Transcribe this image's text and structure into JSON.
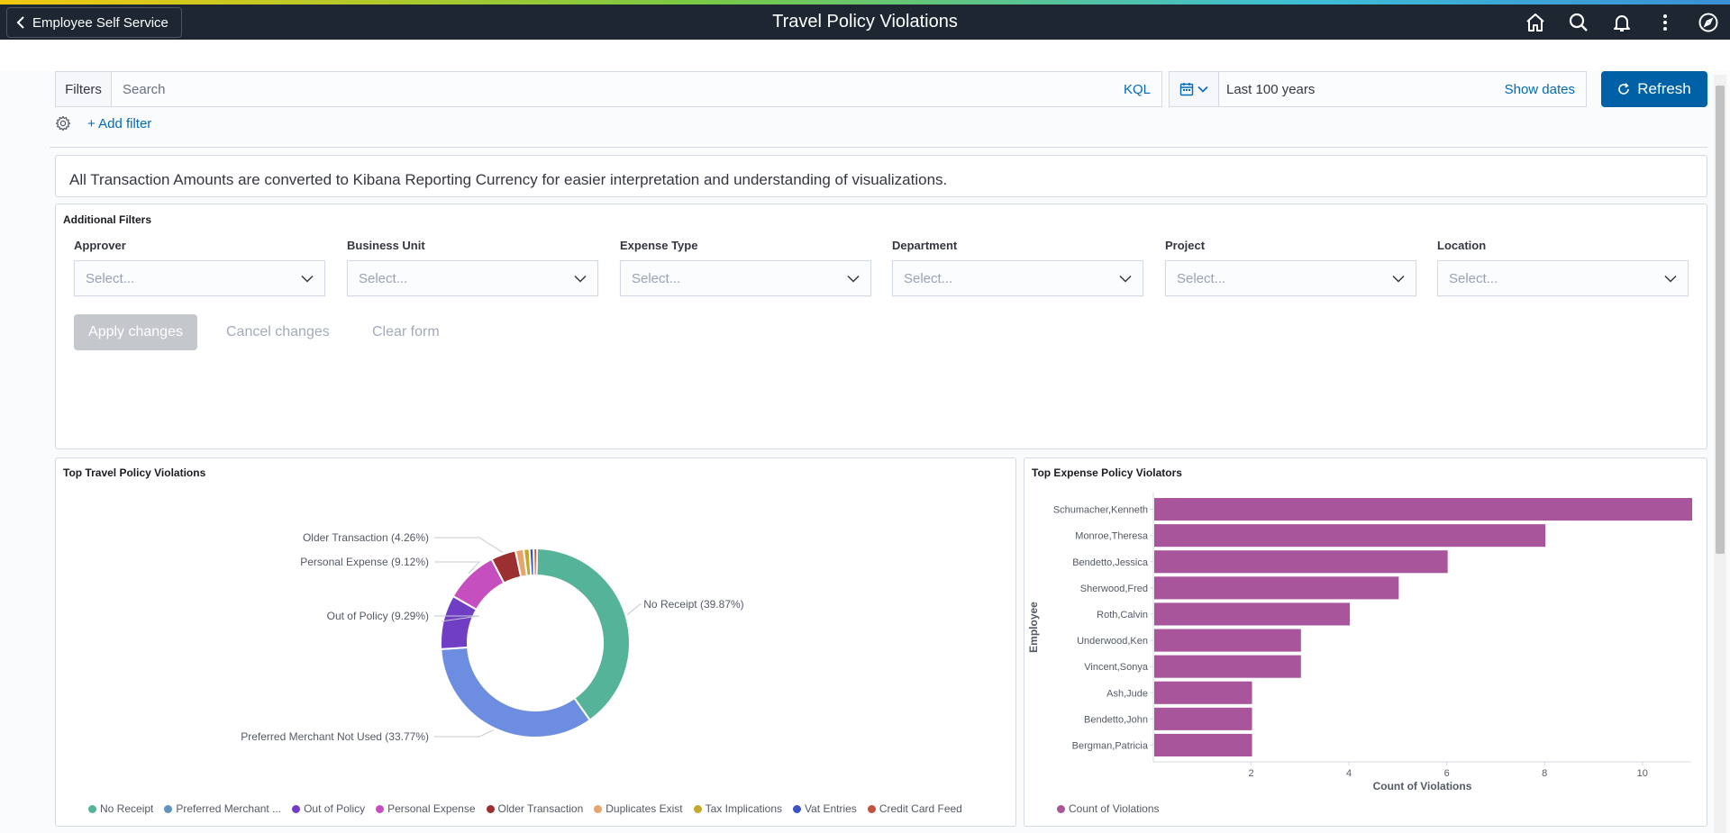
{
  "header": {
    "back_label": "Employee Self Service",
    "title": "Travel Policy Violations",
    "icons": [
      "home-icon",
      "search-icon",
      "bell-icon",
      "more-vertical-icon",
      "compass-icon"
    ]
  },
  "querybar": {
    "filters_label": "Filters",
    "search_placeholder": "Search",
    "kql_label": "KQL",
    "date_range": "Last 100 years",
    "show_dates_label": "Show dates",
    "refresh_label": "Refresh",
    "add_filter_label": "+ Add filter"
  },
  "info": {
    "text": "All Transaction Amounts are converted to Kibana Reporting Currency for easier interpretation and understanding of visualizations."
  },
  "additional_filters": {
    "title": "Additional Filters",
    "controls": [
      {
        "label": "Approver",
        "placeholder": "Select..."
      },
      {
        "label": "Business Unit",
        "placeholder": "Select..."
      },
      {
        "label": "Expense Type",
        "placeholder": "Select..."
      },
      {
        "label": "Department",
        "placeholder": "Select..."
      },
      {
        "label": "Project",
        "placeholder": "Select..."
      },
      {
        "label": "Location",
        "placeholder": "Select..."
      }
    ],
    "apply_label": "Apply changes",
    "cancel_label": "Cancel changes",
    "clear_label": "Clear form"
  },
  "donut_panel": {
    "title": "Top Travel Policy Violations",
    "legend": [
      {
        "label": "No Receipt",
        "color": "#54b399"
      },
      {
        "label": "Preferred Merchant ...",
        "color": "#6092c0"
      },
      {
        "label": "Out of Policy",
        "color": "#6f3ec5"
      },
      {
        "label": "Personal Expense",
        "color": "#c64fbf"
      },
      {
        "label": "Older Transaction",
        "color": "#9c2f2f"
      },
      {
        "label": "Duplicates Exist",
        "color": "#e7a46c"
      },
      {
        "label": "Tax Implications",
        "color": "#c4a82b"
      },
      {
        "label": "Vat Entries",
        "color": "#3b51c4"
      },
      {
        "label": "Credit Card Feed",
        "color": "#c2523f"
      }
    ]
  },
  "bar_panel": {
    "title": "Top Expense Policy Violators",
    "legend_label": "Count of Violations",
    "legend_color": "#a8559b"
  },
  "chart_data": [
    {
      "type": "pie",
      "title": "Top Travel Policy Violations",
      "donut": true,
      "slices": [
        {
          "label": "No Receipt",
          "percent": 39.87,
          "display": "No Receipt (39.87%)",
          "color": "#54b399"
        },
        {
          "label": "Preferred Merchant Not Used",
          "percent": 33.77,
          "display": "Preferred Merchant Not Used (33.77%)",
          "color": "#6d8ee0"
        },
        {
          "label": "Out of Policy",
          "percent": 9.29,
          "display": "Out of Policy (9.29%)",
          "color": "#6f3ec5"
        },
        {
          "label": "Personal Expense",
          "percent": 9.12,
          "display": "Personal Expense (9.12%)",
          "color": "#c64fbf"
        },
        {
          "label": "Older Transaction",
          "percent": 4.26,
          "display": "Older Transaction (4.26%)",
          "color": "#9c2f2f"
        },
        {
          "label": "Duplicates Exist",
          "percent": 1.4,
          "color": "#e7a46c"
        },
        {
          "label": "Tax Implications",
          "percent": 1.0,
          "color": "#c4a82b"
        },
        {
          "label": "Vat Entries",
          "percent": 0.7,
          "color": "#3b51c4"
        },
        {
          "label": "Credit Card Feed",
          "percent": 0.59,
          "color": "#c2523f"
        }
      ],
      "legend_position": "bottom"
    },
    {
      "type": "bar",
      "orientation": "horizontal",
      "title": "Top Expense Policy Violators",
      "categories": [
        "Schumacher,Kenneth",
        "Monroe,Theresa",
        "Bendetto,Jessica",
        "Sherwood,Fred",
        "Roth,Calvin",
        "Underwood,Ken",
        "Vincent,Sonya",
        "Ash,Jude",
        "Bendetto,John",
        "Bergman,Patricia"
      ],
      "series": [
        {
          "name": "Count of Violations",
          "values": [
            11,
            8,
            6,
            5,
            4,
            3,
            3,
            2,
            2,
            2
          ],
          "color": "#a8559b"
        }
      ],
      "xlabel": "Count of Violations",
      "ylabel": "Employee",
      "xticks": [
        "2",
        "4",
        "6",
        "8",
        "10"
      ],
      "xlim": [
        0,
        11
      ],
      "legend_position": "bottom-left"
    }
  ]
}
